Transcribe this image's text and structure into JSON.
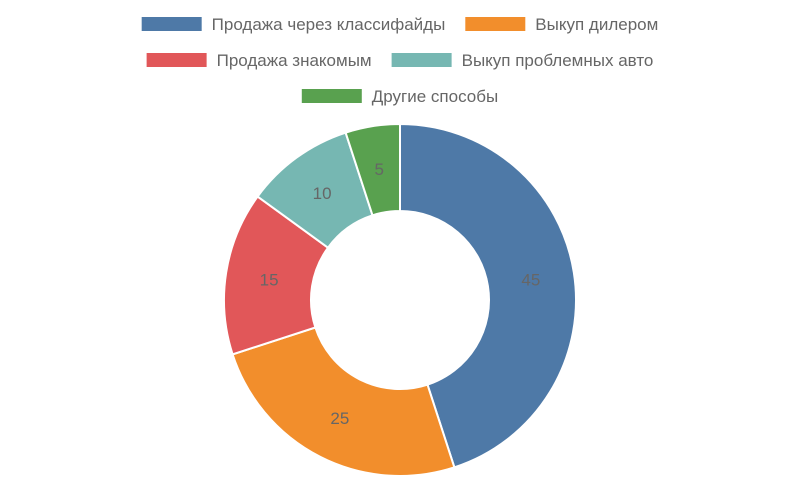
{
  "chart_data": {
    "type": "pie",
    "variant": "doughnut",
    "title": "",
    "legend_position": "top",
    "categories": [
      "Продажа через классифайды",
      "Выкуп дилером",
      "Продажа знакомым",
      "Выкуп проблемных авто",
      "Другие способы"
    ],
    "values": [
      45,
      25,
      15,
      10,
      5
    ],
    "colors": [
      "#4e79a7",
      "#f28e2c",
      "#e15759",
      "#76b7b2",
      "#59a14f"
    ],
    "data_labels": [
      "45",
      "25",
      "15",
      "10",
      "5"
    ]
  }
}
